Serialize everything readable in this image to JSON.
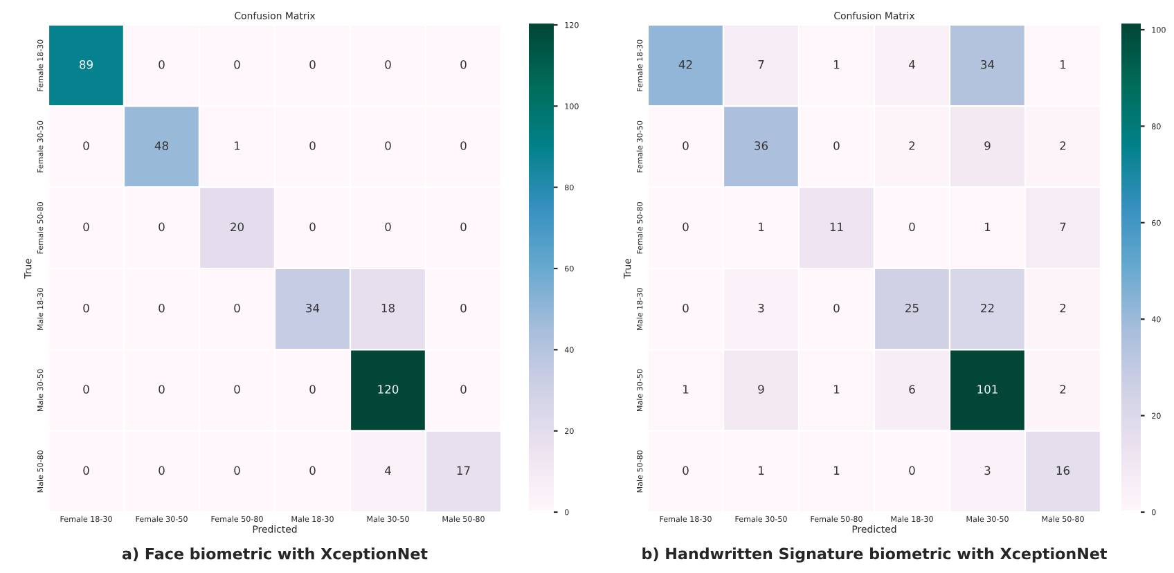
{
  "chart_data": [
    {
      "type": "heatmap",
      "title": "Confusion Matrix",
      "xlabel": "Predicted",
      "ylabel": "True",
      "categories": [
        "Female 18-30",
        "Female 30-50",
        "Female 50-80",
        "Male 18-30",
        "Male 30-50",
        "Male 50-80"
      ],
      "y_categories": [
        "Female 18-30",
        "Female 30-50",
        "Female 50-80",
        "Male 18-30",
        "Male 30-50",
        "Male 50-80"
      ],
      "cells": [
        [
          89,
          0,
          0,
          0,
          0,
          0
        ],
        [
          0,
          48,
          1,
          0,
          0,
          0
        ],
        [
          0,
          0,
          20,
          0,
          0,
          0
        ],
        [
          0,
          0,
          0,
          34,
          18,
          0
        ],
        [
          0,
          0,
          0,
          0,
          120,
          0
        ],
        [
          0,
          0,
          0,
          0,
          4,
          17
        ]
      ],
      "clim": [
        0,
        120
      ],
      "cticks": [
        0,
        20,
        40,
        60,
        80,
        100,
        120
      ],
      "data_labels": true,
      "annotations": [
        "a) Face biometric with XceptionNet"
      ]
    },
    {
      "type": "heatmap",
      "title": "Confusion Matrix",
      "xlabel": "Predicted",
      "ylabel": "True",
      "categories": [
        "Female 18-30",
        "Female 30-50",
        "Female 50-80",
        "Male 18-30",
        "Male 30-50",
        "Male 50-80"
      ],
      "y_categories": [
        "Female 18-30",
        "Female 30-50",
        "Female 50-80",
        "Male 18-30",
        "Male 30-50",
        "Male 50-80"
      ],
      "cells": [
        [
          42,
          7,
          1,
          4,
          34,
          1
        ],
        [
          0,
          36,
          0,
          2,
          9,
          2
        ],
        [
          0,
          1,
          11,
          0,
          1,
          7
        ],
        [
          0,
          3,
          0,
          25,
          22,
          2
        ],
        [
          1,
          9,
          1,
          6,
          101,
          2
        ],
        [
          0,
          1,
          1,
          0,
          3,
          16
        ]
      ],
      "clim": [
        0,
        101
      ],
      "cticks": [
        0,
        20,
        40,
        60,
        80,
        100
      ],
      "data_labels": true,
      "annotations": [
        "b) Handwritten Signature biometric with XceptionNet"
      ]
    }
  ]
}
